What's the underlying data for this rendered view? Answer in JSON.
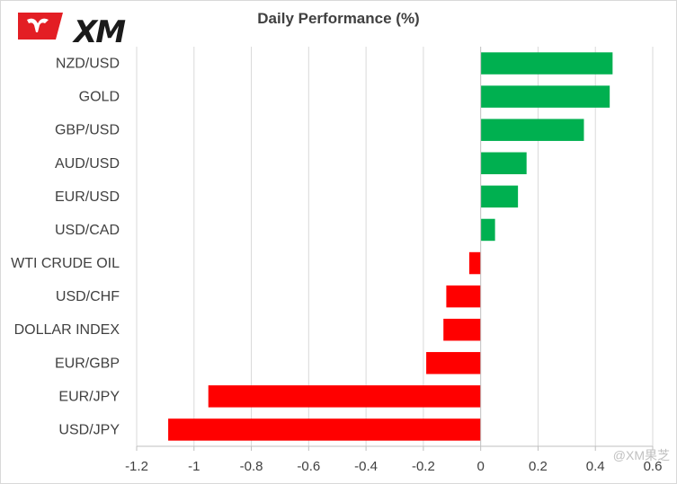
{
  "logo": {
    "text": "XM",
    "accent_color": "#e31e24"
  },
  "watermark": "@XM果芝",
  "chart_data": {
    "type": "bar",
    "orientation": "horizontal",
    "title": "Daily Performance (%)",
    "categories": [
      "NZD/USD",
      "GOLD",
      "GBP/USD",
      "AUD/USD",
      "EUR/USD",
      "USD/CAD",
      "WTI CRUDE OIL",
      "USD/CHF",
      "DOLLAR INDEX",
      "EUR/GBP",
      "EUR/JPY",
      "USD/JPY"
    ],
    "values": [
      0.46,
      0.45,
      0.36,
      0.16,
      0.13,
      0.05,
      -0.04,
      -0.12,
      -0.13,
      -0.19,
      -0.95,
      -1.09
    ],
    "xlim": [
      -1.2,
      0.6
    ],
    "xticks": [
      "-1.2",
      "-1",
      "-0.8",
      "-0.6",
      "-0.4",
      "-0.2",
      "0",
      "0.2",
      "0.4",
      "0.6"
    ],
    "xtick_values": [
      -1.2,
      -1.0,
      -0.8,
      -0.6,
      -0.4,
      -0.2,
      0,
      0.2,
      0.4,
      0.6
    ],
    "grid": "vertical",
    "colors": {
      "positive": "#00b050",
      "negative": "#ff0000",
      "grid": "#d9d9d9",
      "axis": "#bfbfbf"
    }
  }
}
